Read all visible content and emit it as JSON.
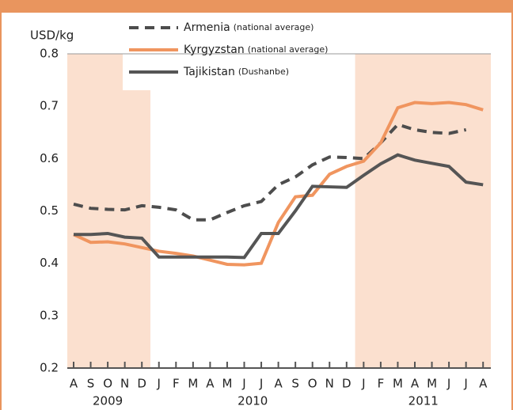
{
  "chart_data": {
    "type": "line",
    "y_label": "USD/kg",
    "categories": [
      "A",
      "S",
      "O",
      "N",
      "D",
      "J",
      "F",
      "M",
      "A",
      "M",
      "J",
      "J",
      "A",
      "S",
      "O",
      "N",
      "D",
      "J",
      "F",
      "M",
      "A",
      "M",
      "J",
      "J",
      "A"
    ],
    "years": [
      "2009",
      "2010",
      "2011"
    ],
    "series": [
      {
        "name": "Armenia",
        "note": "(national average)",
        "color": "#4d4d4d",
        "dashed": true,
        "values": [
          0.513,
          0.505,
          0.503,
          0.502,
          0.51,
          0.507,
          0.502,
          0.483,
          0.483,
          0.497,
          0.51,
          0.518,
          0.55,
          0.565,
          0.588,
          0.603,
          0.602,
          0.6,
          0.63,
          0.665,
          0.655,
          0.65,
          0.648,
          0.655,
          null
        ]
      },
      {
        "name": "Kyrgyzstan",
        "note": "(national average)",
        "color": "#f0955f",
        "dashed": false,
        "values": [
          0.455,
          0.44,
          0.441,
          0.437,
          0.43,
          0.423,
          0.419,
          0.414,
          0.406,
          0.398,
          0.397,
          0.4,
          0.478,
          0.527,
          0.53,
          0.57,
          0.585,
          0.595,
          0.63,
          0.697,
          0.707,
          0.705,
          0.707,
          0.703,
          0.693
        ]
      },
      {
        "name": "Tajikistan",
        "note": "(Dushanbe)",
        "color": "#555555",
        "dashed": false,
        "values": [
          0.455,
          0.455,
          0.457,
          0.45,
          0.448,
          0.412,
          0.412,
          0.412,
          0.412,
          0.412,
          0.411,
          0.457,
          0.457,
          0.5,
          0.547,
          0.546,
          0.545,
          0.568,
          0.59,
          0.607,
          0.597,
          0.591,
          0.585,
          0.555,
          0.55
        ]
      }
    ],
    "ylim": [
      0.2,
      0.8
    ],
    "yticks": [
      0.2,
      0.3,
      0.4,
      0.5,
      0.6,
      0.7,
      0.8
    ],
    "grid": false
  }
}
